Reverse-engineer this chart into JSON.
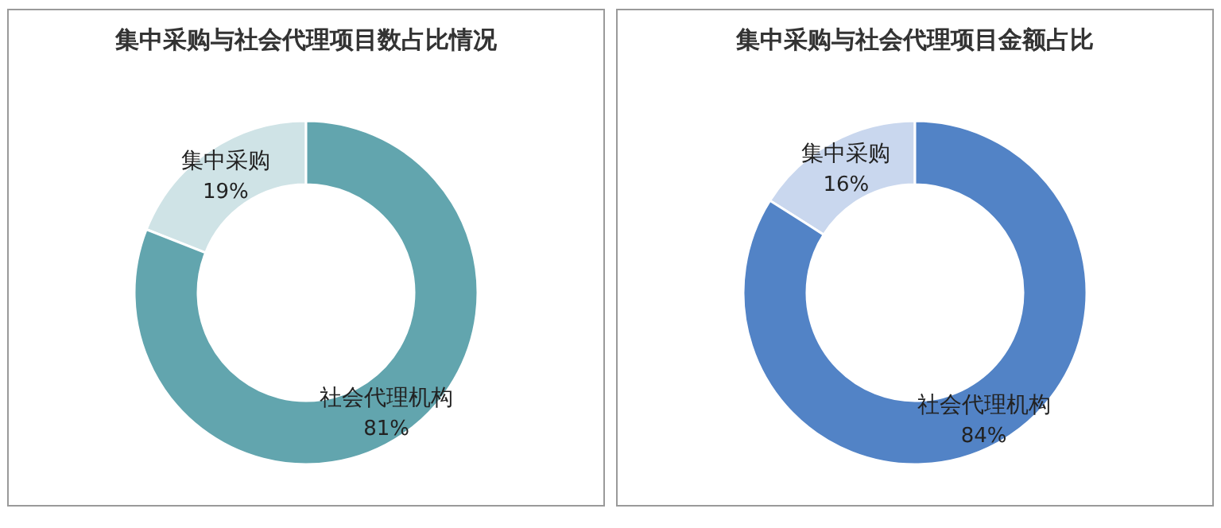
{
  "chart_data": [
    {
      "type": "donut",
      "title": "集中采购与社会代理项目数占比情况",
      "categories": [
        "集中采购",
        "社会代理机构"
      ],
      "values": [
        19,
        81
      ],
      "colors": [
        "#cfe3e6",
        "#62a5ae"
      ],
      "value_labels": [
        "19%",
        "81%"
      ]
    },
    {
      "type": "donut",
      "title": "集中采购与社会代理项目金额占比",
      "categories": [
        "集中采购",
        "社会代理机构"
      ],
      "values": [
        16,
        84
      ],
      "colors": [
        "#c9d7ee",
        "#5283c6"
      ],
      "value_labels": [
        "16%",
        "84%"
      ]
    }
  ]
}
